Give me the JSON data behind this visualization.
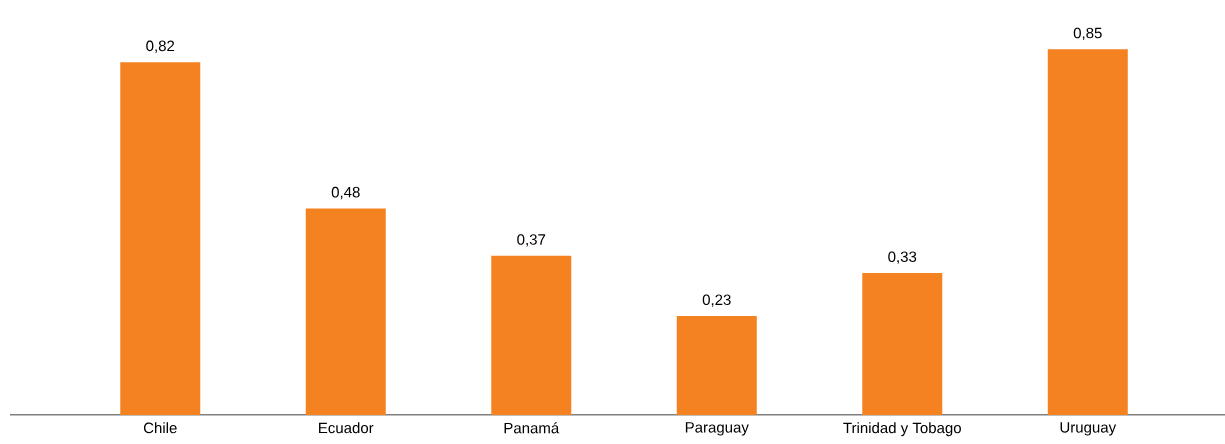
{
  "chart_data": {
    "type": "bar",
    "categories": [
      "Chile",
      "Ecuador",
      "Panamá",
      "Paraguay",
      "Trinidad y Tobago",
      "Uruguay"
    ],
    "values": [
      0.82,
      0.48,
      0.37,
      0.23,
      0.33,
      0.85
    ],
    "value_labels": [
      "0,82",
      "0,48",
      "0,37",
      "0,23",
      "0,33",
      "0,85"
    ],
    "color": "#f58220"
  }
}
